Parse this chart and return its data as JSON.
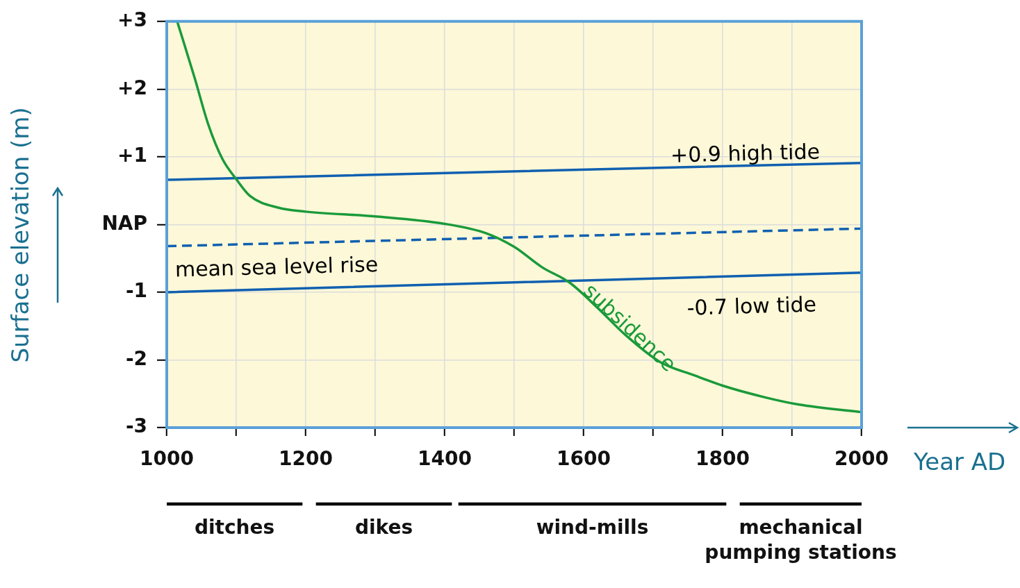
{
  "chart_data": [
    {
      "type": "line",
      "xlabel": "Year AD",
      "ylabel": "Surface elevation (m)",
      "xlim": [
        1000,
        2000
      ],
      "ylim": [
        -3,
        3
      ],
      "xticks": [
        1000,
        {
          "value": 1100,
          "label": null
        },
        1200,
        {
          "value": 1300,
          "label": null
        },
        1400,
        {
          "value": 1500,
          "label": null
        },
        1600,
        {
          "value": 1700,
          "label": null
        },
        1800,
        {
          "value": 1900,
          "label": null
        },
        2000
      ],
      "yticks": [
        {
          "value": -3,
          "label": "-3"
        },
        {
          "value": -2,
          "label": "-2"
        },
        {
          "value": -1,
          "label": "-1"
        },
        {
          "value": 0,
          "label": "NAP"
        },
        {
          "value": 1,
          "label": "+1"
        },
        {
          "value": 2,
          "label": "+2"
        },
        {
          "value": 3,
          "label": "+3"
        }
      ],
      "grid": true,
      "marker": "none",
      "series": [
        {
          "name": "subsidence",
          "color": "#1a9a3a",
          "x": [
            1015,
            1040,
            1060,
            1080,
            1100,
            1120,
            1160,
            1200,
            1300,
            1400,
            1460,
            1500,
            1540,
            1580,
            1620,
            1660,
            1710,
            1760,
            1800,
            1860,
            1910,
            1998
          ],
          "values": [
            3.0,
            2.17,
            1.47,
            0.97,
            0.67,
            0.42,
            0.25,
            0.19,
            0.12,
            0.01,
            -0.13,
            -0.33,
            -0.63,
            -0.86,
            -1.23,
            -1.63,
            -2.03,
            -2.23,
            -2.38,
            -2.55,
            -2.66,
            -2.77
          ]
        },
        {
          "name": "+0.9 high tide",
          "color": "#1060b0",
          "x": [
            1000,
            2000
          ],
          "values": [
            0.66,
            0.91
          ]
        },
        {
          "name": "mean sea level rise",
          "color": "#1060b0",
          "line_style": "dashed",
          "x": [
            1000,
            2000
          ],
          "values": [
            -0.32,
            -0.06
          ]
        },
        {
          "name": "-0.7 low tide",
          "color": "#1060b0",
          "x": [
            1000,
            2000
          ],
          "values": [
            -1.0,
            -0.71
          ]
        }
      ]
    },
    {
      "type": "bar",
      "orientation": "horizontal",
      "categories": [
        null
      ],
      "xlim": [
        1000,
        2000
      ],
      "tick_labels": false,
      "series": [
        {
          "name": "ditches",
          "color": "#000000",
          "values": [
            195
          ],
          "base": [
            1000
          ]
        },
        {
          "name": "dikes",
          "color": "#000000",
          "values": [
            195
          ],
          "base": [
            1215
          ]
        },
        {
          "name": "wind-mills",
          "color": "#000000",
          "values": [
            385
          ],
          "base": [
            1420
          ]
        },
        {
          "name": "mechanical pumping stations",
          "color": "#000000",
          "values": [
            175
          ],
          "base": [
            1825
          ]
        }
      ]
    }
  ]
}
